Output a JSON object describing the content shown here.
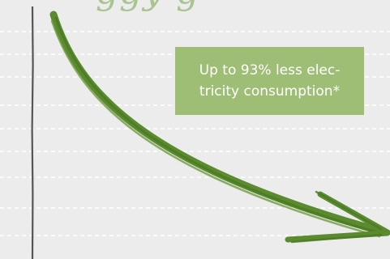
{
  "heading": {
    "fragment": "ggy     g"
  },
  "callout": {
    "text": "Up to 93% less elec-\ntricity consumption*"
  },
  "colors": {
    "background": "#ececec",
    "arrow": "#5b8a2f",
    "callout_bg": "#9ebd75",
    "callout_text": "#ffffff",
    "heading": "#a9c48f",
    "axis": "#555555",
    "gridline": "#ffffff"
  }
}
